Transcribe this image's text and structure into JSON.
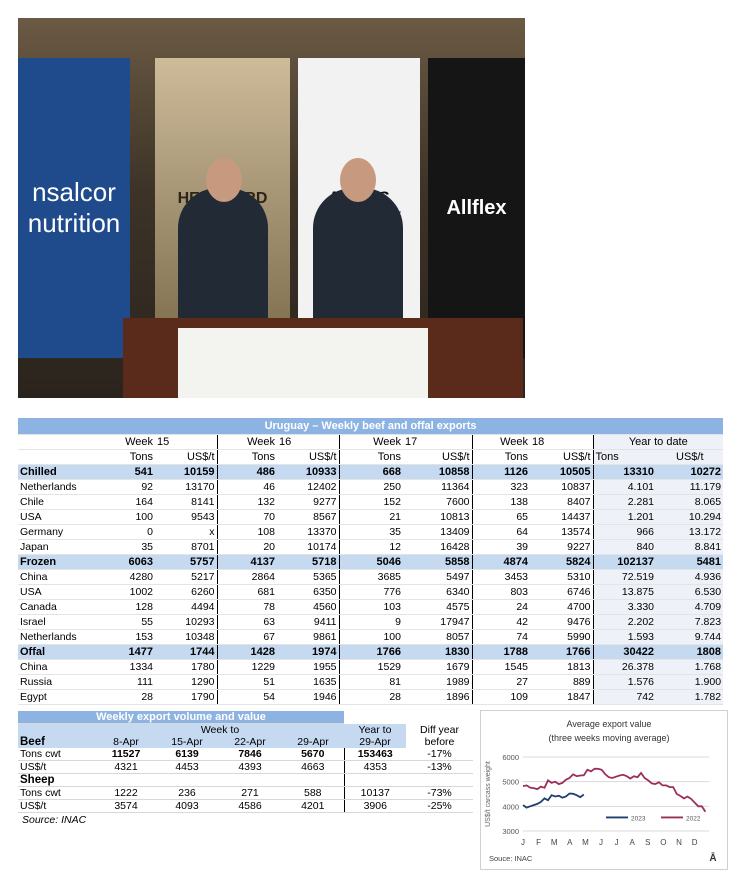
{
  "photo": {
    "logos": [
      "nsalcor nutrition",
      "HEREFORD URUGUAY",
      "ANGUS URUGUAY",
      "Allflex"
    ]
  },
  "table1": {
    "title": "Uruguay – Weekly beef and offal exports",
    "week_label": "Week",
    "weeks": [
      "15",
      "16",
      "17",
      "18"
    ],
    "ytd_label": "Year to date",
    "col_tons": "Tons",
    "col_usd": "US$/t",
    "rows": [
      {
        "label": "Chilled",
        "section": true,
        "v": [
          "541",
          "10159",
          "486",
          "10933",
          "668",
          "10858",
          "1126",
          "10505",
          "13310",
          "10272"
        ]
      },
      {
        "label": "Netherlands",
        "v": [
          "92",
          "13170",
          "46",
          "12402",
          "250",
          "11364",
          "323",
          "10837",
          "4.101",
          "11.179"
        ]
      },
      {
        "label": "Chile",
        "v": [
          "164",
          "8141",
          "132",
          "9277",
          "152",
          "7600",
          "138",
          "8407",
          "2.281",
          "8.065"
        ]
      },
      {
        "label": "USA",
        "v": [
          "100",
          "9543",
          "70",
          "8567",
          "21",
          "10813",
          "65",
          "14437",
          "1.201",
          "10.294"
        ]
      },
      {
        "label": "Germany",
        "v": [
          "0",
          "x",
          "108",
          "13370",
          "35",
          "13409",
          "64",
          "13574",
          "966",
          "13.172"
        ]
      },
      {
        "label": "Japan",
        "v": [
          "35",
          "8701",
          "20",
          "10174",
          "12",
          "16428",
          "39",
          "9227",
          "840",
          "8.841"
        ]
      },
      {
        "label": "Frozen",
        "section": true,
        "v": [
          "6063",
          "5757",
          "4137",
          "5718",
          "5046",
          "5858",
          "4874",
          "5824",
          "102137",
          "5481"
        ]
      },
      {
        "label": "China",
        "v": [
          "4280",
          "5217",
          "2864",
          "5365",
          "3685",
          "5497",
          "3453",
          "5310",
          "72.519",
          "4.936"
        ]
      },
      {
        "label": "USA",
        "v": [
          "1002",
          "6260",
          "681",
          "6350",
          "776",
          "6340",
          "803",
          "6746",
          "13.875",
          "6.530"
        ]
      },
      {
        "label": "Canada",
        "v": [
          "128",
          "4494",
          "78",
          "4560",
          "103",
          "4575",
          "24",
          "4700",
          "3.330",
          "4.709"
        ]
      },
      {
        "label": "Israel",
        "v": [
          "55",
          "10293",
          "63",
          "9411",
          "9",
          "17947",
          "42",
          "9476",
          "2.202",
          "7.823"
        ]
      },
      {
        "label": "Netherlands",
        "v": [
          "153",
          "10348",
          "67",
          "9861",
          "100",
          "8057",
          "74",
          "5990",
          "1.593",
          "9.744"
        ]
      },
      {
        "label": "Offal",
        "section": true,
        "v": [
          "1477",
          "1744",
          "1428",
          "1974",
          "1766",
          "1830",
          "1788",
          "1766",
          "30422",
          "1808"
        ]
      },
      {
        "label": "China",
        "v": [
          "1334",
          "1780",
          "1229",
          "1955",
          "1529",
          "1679",
          "1545",
          "1813",
          "26.378",
          "1.768"
        ]
      },
      {
        "label": "Russia",
        "v": [
          "111",
          "1290",
          "51",
          "1635",
          "81",
          "1989",
          "27",
          "889",
          "1.576",
          "1.900"
        ]
      },
      {
        "label": "Egypt",
        "v": [
          "28",
          "1790",
          "54",
          "1946",
          "28",
          "1896",
          "109",
          "1847",
          "742",
          "1.782"
        ]
      }
    ]
  },
  "table2": {
    "title": "Weekly export volume and value",
    "week_to": "Week to",
    "year_to": "Year to",
    "diff1": "Diff year",
    "diff2": "before",
    "cols": [
      "8-Apr",
      "15-Apr",
      "22-Apr",
      "29-Apr",
      "29-Apr"
    ],
    "groups": [
      {
        "label": "Beef",
        "rows": [
          {
            "label": "Tons cwt",
            "bold": true,
            "v": [
              "11527",
              "6139",
              "7846",
              "5670",
              "153463",
              "-17%"
            ]
          },
          {
            "label": "US$/t",
            "v": [
              "4321",
              "4453",
              "4393",
              "4663",
              "4353",
              "-13%"
            ]
          }
        ]
      },
      {
        "label": "Sheep",
        "rows": [
          {
            "label": "Tons cwt",
            "v": [
              "1222",
              "236",
              "271",
              "588",
              "10137",
              "-73%"
            ]
          },
          {
            "label": "US$/t",
            "v": [
              "3574",
              "4093",
              "4586",
              "4201",
              "3906",
              "-25%"
            ]
          }
        ]
      }
    ],
    "source": "Source: INAC"
  },
  "chart_data": {
    "type": "line",
    "title": "Average export  value",
    "subtitle": "(three weeks moving average)",
    "ylabel": "US$/t carcass weight",
    "ylim": [
      3000,
      6000
    ],
    "yticks": [
      "3000",
      "4000",
      "5000",
      "6000"
    ],
    "xticks": [
      "J",
      "F",
      "M",
      "A",
      "M",
      "J",
      "J",
      "A",
      "S",
      "O",
      "N",
      "D"
    ],
    "source": "Souce: INAC",
    "corner_mark": "Ā",
    "series": [
      {
        "name": "2023",
        "color": "#1f3f6e",
        "values": [
          4050,
          3950,
          4000,
          4050,
          4100,
          4180,
          4320,
          4250,
          4450,
          4400,
          4430,
          4350,
          4400,
          4520,
          4510,
          4450,
          4370,
          4480
        ]
      },
      {
        "name": "2022",
        "color": "#9b2f5c",
        "values": [
          4820,
          4850,
          4760,
          4740,
          4700,
          4800,
          4750,
          5050,
          4950,
          5000,
          4900,
          4950,
          5080,
          5150,
          5300,
          5220,
          5250,
          5260,
          5480,
          5420,
          5520,
          5520,
          5480,
          5300,
          5180,
          5150,
          5200,
          5250,
          5280,
          5220,
          5130,
          5220,
          5180,
          5350,
          5150,
          5050,
          4930,
          4900,
          4980,
          4850,
          4850,
          4780,
          4780,
          4500,
          4420,
          4320,
          4400,
          4300,
          4150,
          4000,
          4000,
          3780
        ]
      }
    ]
  }
}
